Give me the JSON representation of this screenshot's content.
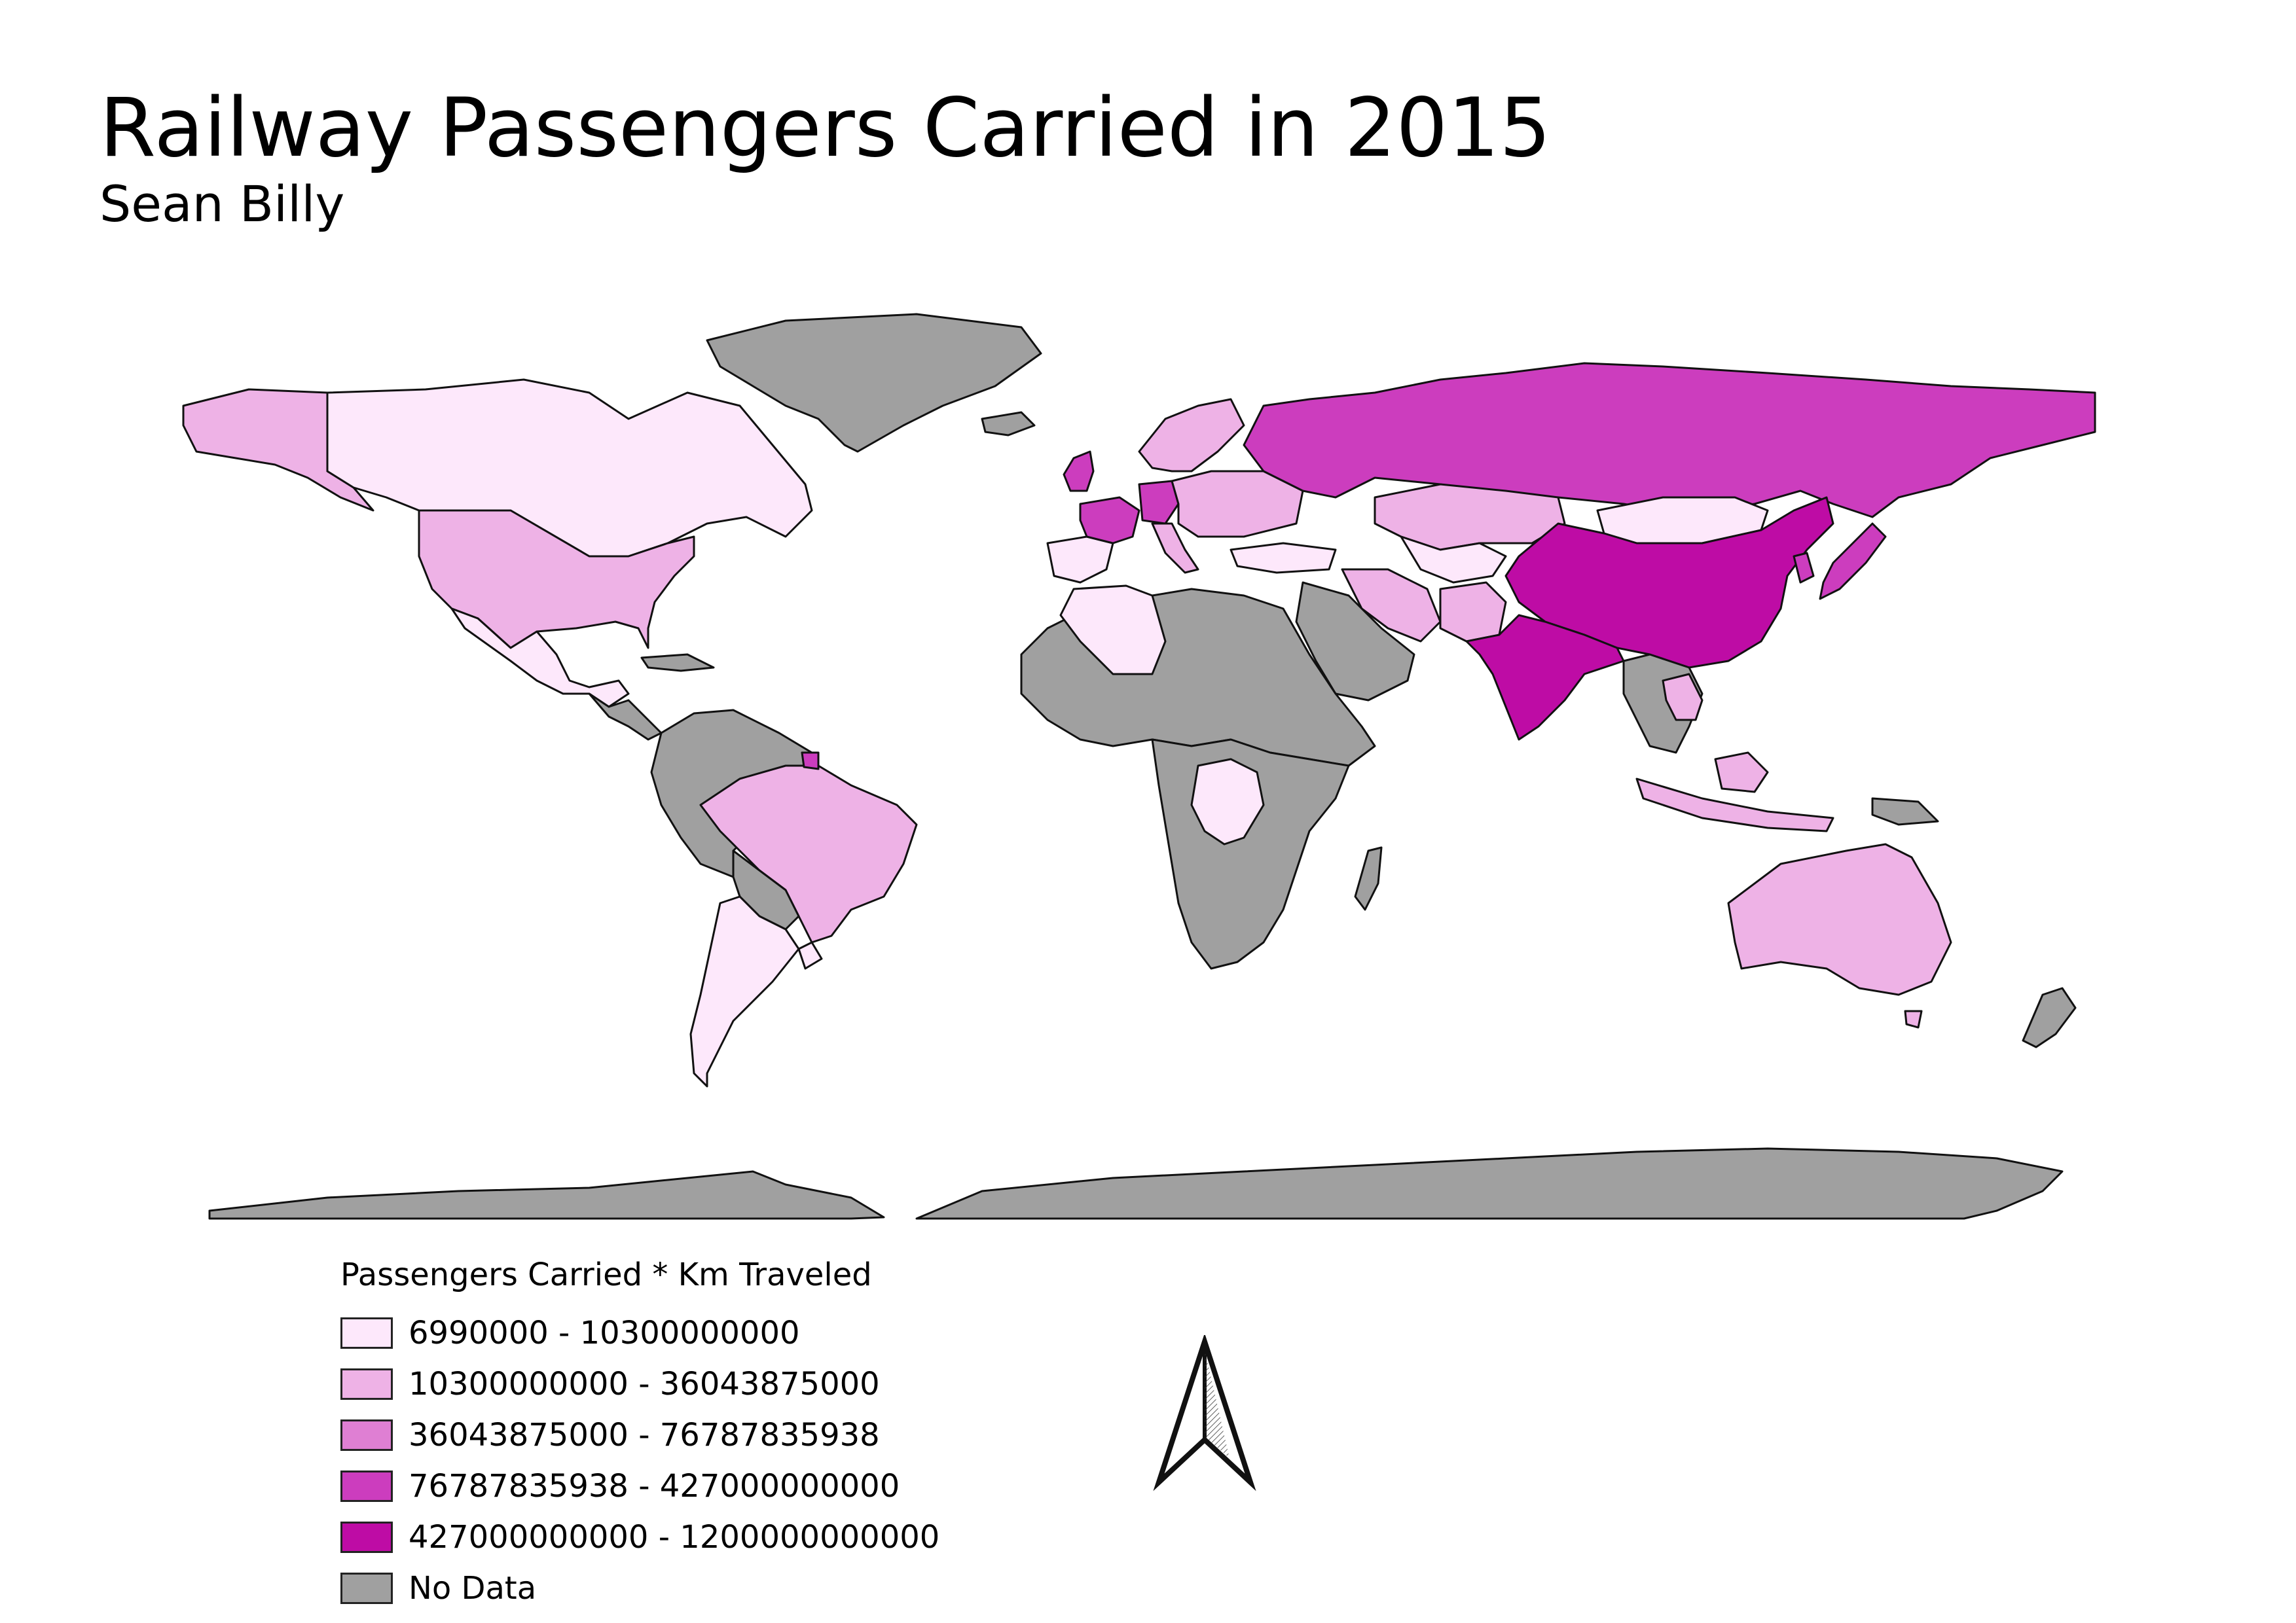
{
  "title": "Railway Passengers Carried in 2015",
  "author": "Sean Billy",
  "legend": {
    "title": "Passengers Carried * Km Traveled",
    "classes": [
      {
        "label": "6990000 - 10300000000",
        "color": "#fde8fb"
      },
      {
        "label": "10300000000 - 36043875000",
        "color": "#eeb2e6"
      },
      {
        "label": "36043875000 - 76787835938",
        "color": "#df7fd3"
      },
      {
        "label": "76787835938 - 427000000000",
        "color": "#cc3dbe"
      },
      {
        "label": "427000000000 - 1200000000000",
        "color": "#be0ca5"
      },
      {
        "label": "No Data",
        "color": "#a0a0a0"
      }
    ]
  },
  "countries": [
    {
      "name": "Canada",
      "class": 0
    },
    {
      "name": "United States",
      "class": 1
    },
    {
      "name": "Mexico",
      "class": 0
    },
    {
      "name": "Brazil",
      "class": 1
    },
    {
      "name": "Argentina",
      "class": 0
    },
    {
      "name": "Russia",
      "class": 3
    },
    {
      "name": "China",
      "class": 4
    },
    {
      "name": "India",
      "class": 4
    },
    {
      "name": "Japan",
      "class": 3
    },
    {
      "name": "Mongolia",
      "class": 0
    },
    {
      "name": "Kazakhstan",
      "class": 1
    },
    {
      "name": "Australia",
      "class": 1
    },
    {
      "name": "Algeria",
      "class": 0
    },
    {
      "name": "DR Congo",
      "class": 0
    },
    {
      "name": "France",
      "class": 3
    },
    {
      "name": "Germany",
      "class": 3
    },
    {
      "name": "United Kingdom",
      "class": 3
    },
    {
      "name": "Greenland",
      "class": 5
    },
    {
      "name": "Antarctica",
      "class": 5
    }
  ]
}
